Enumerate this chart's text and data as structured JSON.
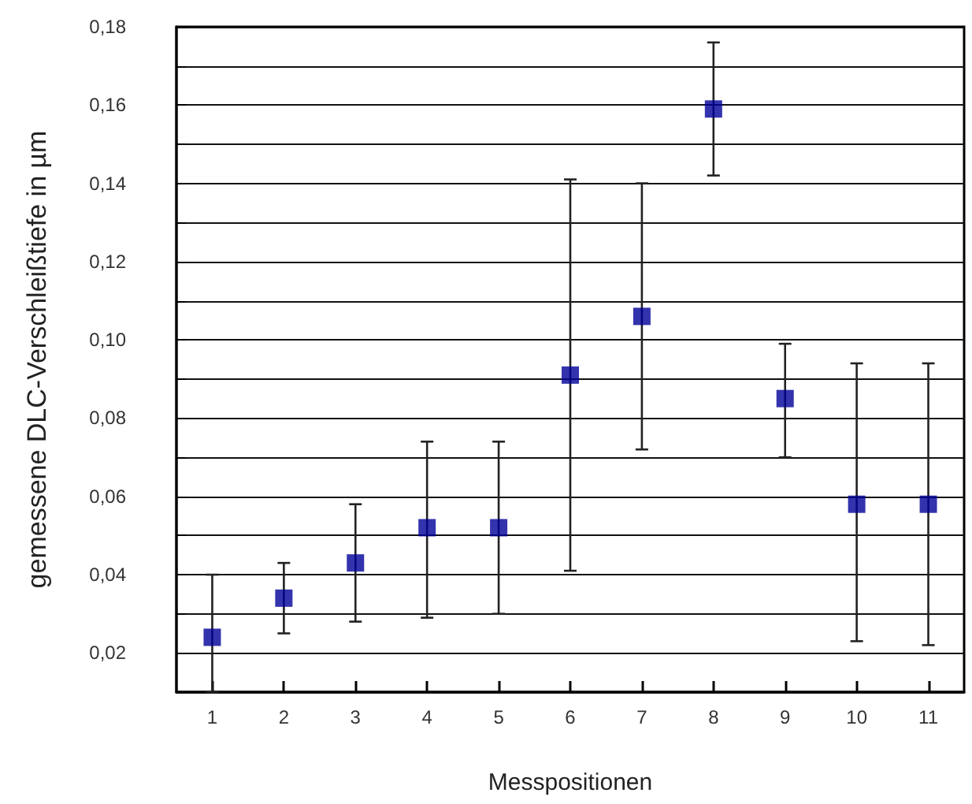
{
  "chart_data": {
    "type": "scatter",
    "xlabel": "Messpositionen",
    "ylabel": "gemessene DLC-Verschleißtiefe in µm",
    "categories": [
      "1",
      "2",
      "3",
      "4",
      "5",
      "6",
      "7",
      "8",
      "9",
      "10",
      "11"
    ],
    "values": [
      0.024,
      0.034,
      0.043,
      0.052,
      0.052,
      0.091,
      0.106,
      0.159,
      0.085,
      0.058,
      0.058
    ],
    "errors": [
      [
        0.01,
        0.04
      ],
      [
        0.025,
        0.043
      ],
      [
        0.028,
        0.058
      ],
      [
        0.029,
        0.074
      ],
      [
        0.03,
        0.074
      ],
      [
        0.041,
        0.141
      ],
      [
        0.072,
        0.14
      ],
      [
        0.142,
        0.176
      ],
      [
        0.07,
        0.099
      ],
      [
        0.023,
        0.094
      ],
      [
        0.022,
        0.094
      ]
    ],
    "color": "#000099",
    "marker": "square",
    "grid": "y",
    "legend": false,
    "ylim": [
      0.01,
      0.18
    ],
    "yticks": [
      {
        "value": 0.01,
        "label": null
      },
      {
        "value": 0.02,
        "label": "0,02"
      },
      {
        "value": 0.03,
        "label": null
      },
      {
        "value": 0.04,
        "label": "0,04"
      },
      {
        "value": 0.05,
        "label": null
      },
      {
        "value": 0.06,
        "label": "0,06"
      },
      {
        "value": 0.07,
        "label": null
      },
      {
        "value": 0.08,
        "label": "0,08"
      },
      {
        "value": 0.09,
        "label": null
      },
      {
        "value": 0.1,
        "label": "0,10"
      },
      {
        "value": 0.11,
        "label": null
      },
      {
        "value": 0.12,
        "label": "0,12"
      },
      {
        "value": 0.13,
        "label": null
      },
      {
        "value": 0.14,
        "label": "0,14"
      },
      {
        "value": 0.15,
        "label": null
      },
      {
        "value": 0.16,
        "label": "0,16"
      },
      {
        "value": 0.17,
        "label": null
      },
      {
        "value": 0.18,
        "label": "0,18"
      }
    ]
  }
}
